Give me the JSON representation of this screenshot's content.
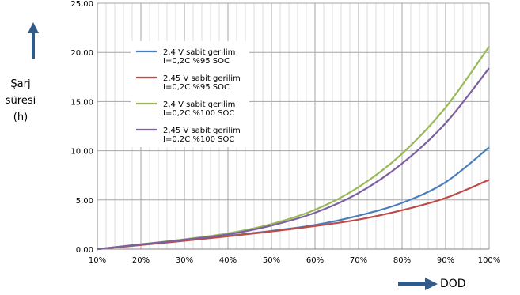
{
  "chart_data": {
    "type": "line",
    "title": "",
    "ylabel_lines": [
      "Şarj",
      "süresi",
      "(h)"
    ],
    "xlabel": "DOD",
    "x_ticks": [
      "10%",
      "20%",
      "30%",
      "40%",
      "50%",
      "60%",
      "70%",
      "80%",
      "90%",
      "100%"
    ],
    "y_ticks": [
      "0,00",
      "5,00",
      "10,00",
      "15,00",
      "20,00",
      "25,00"
    ],
    "xlim": [
      10,
      100
    ],
    "ylim": [
      0,
      25
    ],
    "grid": true,
    "legend_position": "top-left",
    "x": [
      10,
      20,
      30,
      40,
      50,
      60,
      70,
      80,
      90,
      100
    ],
    "series": [
      {
        "name_lines": [
          "2,4 V sabit gerilim",
          "I=0,2C  %95 SOC"
        ],
        "color": "#4a7ebb",
        "values": [
          0.0,
          0.45,
          0.9,
          1.35,
          1.85,
          2.45,
          3.4,
          4.7,
          6.8,
          10.35
        ]
      },
      {
        "name_lines": [
          "2,45 V sabit gerilim",
          "I=0,2C  %95 SOC"
        ],
        "color": "#be4b48",
        "values": [
          0.0,
          0.42,
          0.85,
          1.3,
          1.8,
          2.35,
          3.0,
          3.95,
          5.2,
          7.05
        ]
      },
      {
        "name_lines": [
          "2,4 V sabit gerilim",
          "I=0,2C  %100 SOC"
        ],
        "color": "#98b954",
        "values": [
          0.0,
          0.5,
          1.0,
          1.6,
          2.55,
          4.0,
          6.3,
          9.7,
          14.4,
          20.6
        ]
      },
      {
        "name_lines": [
          "2,45 V sabit gerilim",
          "I=0,2C  %100 SOC"
        ],
        "color": "#7d60a0",
        "values": [
          0.0,
          0.48,
          0.95,
          1.5,
          2.4,
          3.7,
          5.7,
          8.7,
          12.8,
          18.4
        ]
      }
    ]
  }
}
